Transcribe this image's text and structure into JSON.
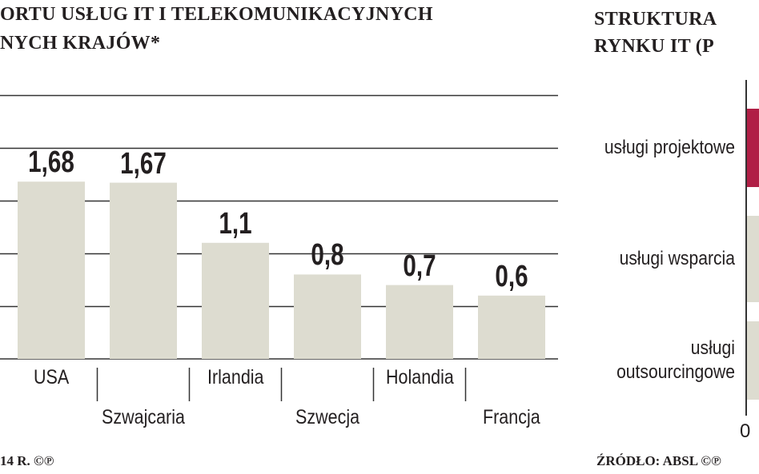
{
  "left": {
    "title_line1": "ORTU USŁUG IT I TELEKOMUNIKACYJNYCH",
    "title_line2": "NYCH KRAJÓW*",
    "footer": "14 R. ©℗"
  },
  "right": {
    "title_line1": "STRUKTURA",
    "title_line2": "RYNKU IT (P",
    "footer": "ŹRÓDŁO: ABSL ©℗",
    "axis_zero": "0"
  },
  "colors": {
    "bar": "#dddcd0",
    "accent": "#b01e45",
    "grid": "#333333",
    "text": "#231f20"
  },
  "chart_data": [
    {
      "type": "bar",
      "categories": [
        "USA",
        "Szwajcaria",
        "Irlandia",
        "Szwecja",
        "Holandia",
        "Francja"
      ],
      "values": [
        1.68,
        1.67,
        1.1,
        0.8,
        0.7,
        0.6
      ],
      "value_labels": [
        "1,68",
        "1,67",
        "1,1",
        "0,8",
        "0,7",
        "0,6"
      ],
      "grid": true,
      "ylim": [
        0,
        2.5
      ]
    },
    {
      "type": "bar",
      "orientation": "horizontal",
      "categories": [
        "usługi projektowe",
        "usługi wsparcia",
        "usługi outsourcingowe"
      ],
      "category_lines": [
        [
          "usługi projektowe"
        ],
        [
          "usługi wsparcia"
        ],
        [
          "usługi",
          "outsourcingowe"
        ]
      ],
      "colors": [
        "#b01e45",
        "#dddcd0",
        "#dddcd0"
      ],
      "xtick_labels": [
        "0"
      ]
    }
  ]
}
